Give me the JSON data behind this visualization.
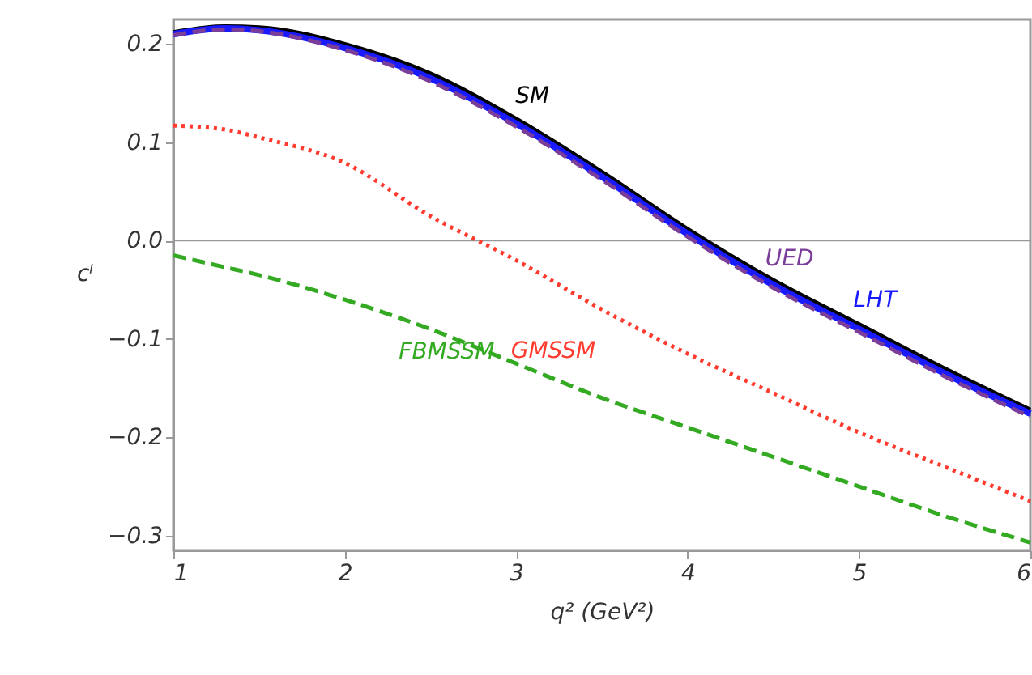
{
  "chart_data": {
    "type": "line",
    "xlabel": "q² (GeV²)",
    "ylabel": "cˡ",
    "x": [
      1,
      1.3,
      1.5,
      2,
      2.5,
      3,
      3.5,
      4,
      4.5,
      5,
      5.5,
      6
    ],
    "xlim": [
      1,
      6
    ],
    "xticks": [
      1,
      2,
      3,
      4,
      5,
      6
    ],
    "ylim": [
      -0.315,
      0.225
    ],
    "yticks": [
      {
        "value": 0.2,
        "label": "0.2"
      },
      {
        "value": 0.1,
        "label": "0.1"
      },
      {
        "value": 0,
        "label": "0.0"
      },
      {
        "value": -0.1,
        "label": "−0.1"
      },
      {
        "value": -0.2,
        "label": "−0.2"
      },
      {
        "value": -0.3,
        "label": "−0.3"
      }
    ],
    "grid": false,
    "legend": false,
    "ref_lines": [
      {
        "axis": "y",
        "value": 0,
        "color": "#999999"
      }
    ],
    "series": [
      {
        "name": "SM",
        "color": "#000000",
        "line_style": "solid",
        "values": [
          0.212,
          0.218,
          0.217,
          0.2,
          0.17,
          0.124,
          0.07,
          0.012,
          -0.04,
          -0.085,
          -0.13,
          -0.172
        ]
      },
      {
        "name": "LHT",
        "color": "#1a1aff",
        "line_style": "solid",
        "values": [
          0.21,
          0.216,
          0.214,
          0.196,
          0.165,
          0.119,
          0.065,
          0.007,
          -0.045,
          -0.09,
          -0.135,
          -0.176
        ]
      },
      {
        "name": "UED",
        "color": "#7a3d99",
        "line_style": "dashed",
        "values": [
          0.209,
          0.215,
          0.213,
          0.194,
          0.162,
          0.116,
          0.062,
          0.004,
          -0.048,
          -0.093,
          -0.138,
          -0.179
        ]
      },
      {
        "name": "GMSSM",
        "color": "#ff3b30",
        "line_style": "dotted",
        "values": [
          0.117,
          0.113,
          0.105,
          0.079,
          0.025,
          -0.02,
          -0.07,
          -0.115,
          -0.155,
          -0.195,
          -0.23,
          -0.265
        ]
      },
      {
        "name": "FBMSSM",
        "color": "#33aa22",
        "line_style": "dashed",
        "values": [
          -0.015,
          -0.027,
          -0.035,
          -0.06,
          -0.09,
          -0.125,
          -0.16,
          -0.19,
          -0.22,
          -0.25,
          -0.28,
          -0.307
        ]
      }
    ]
  }
}
